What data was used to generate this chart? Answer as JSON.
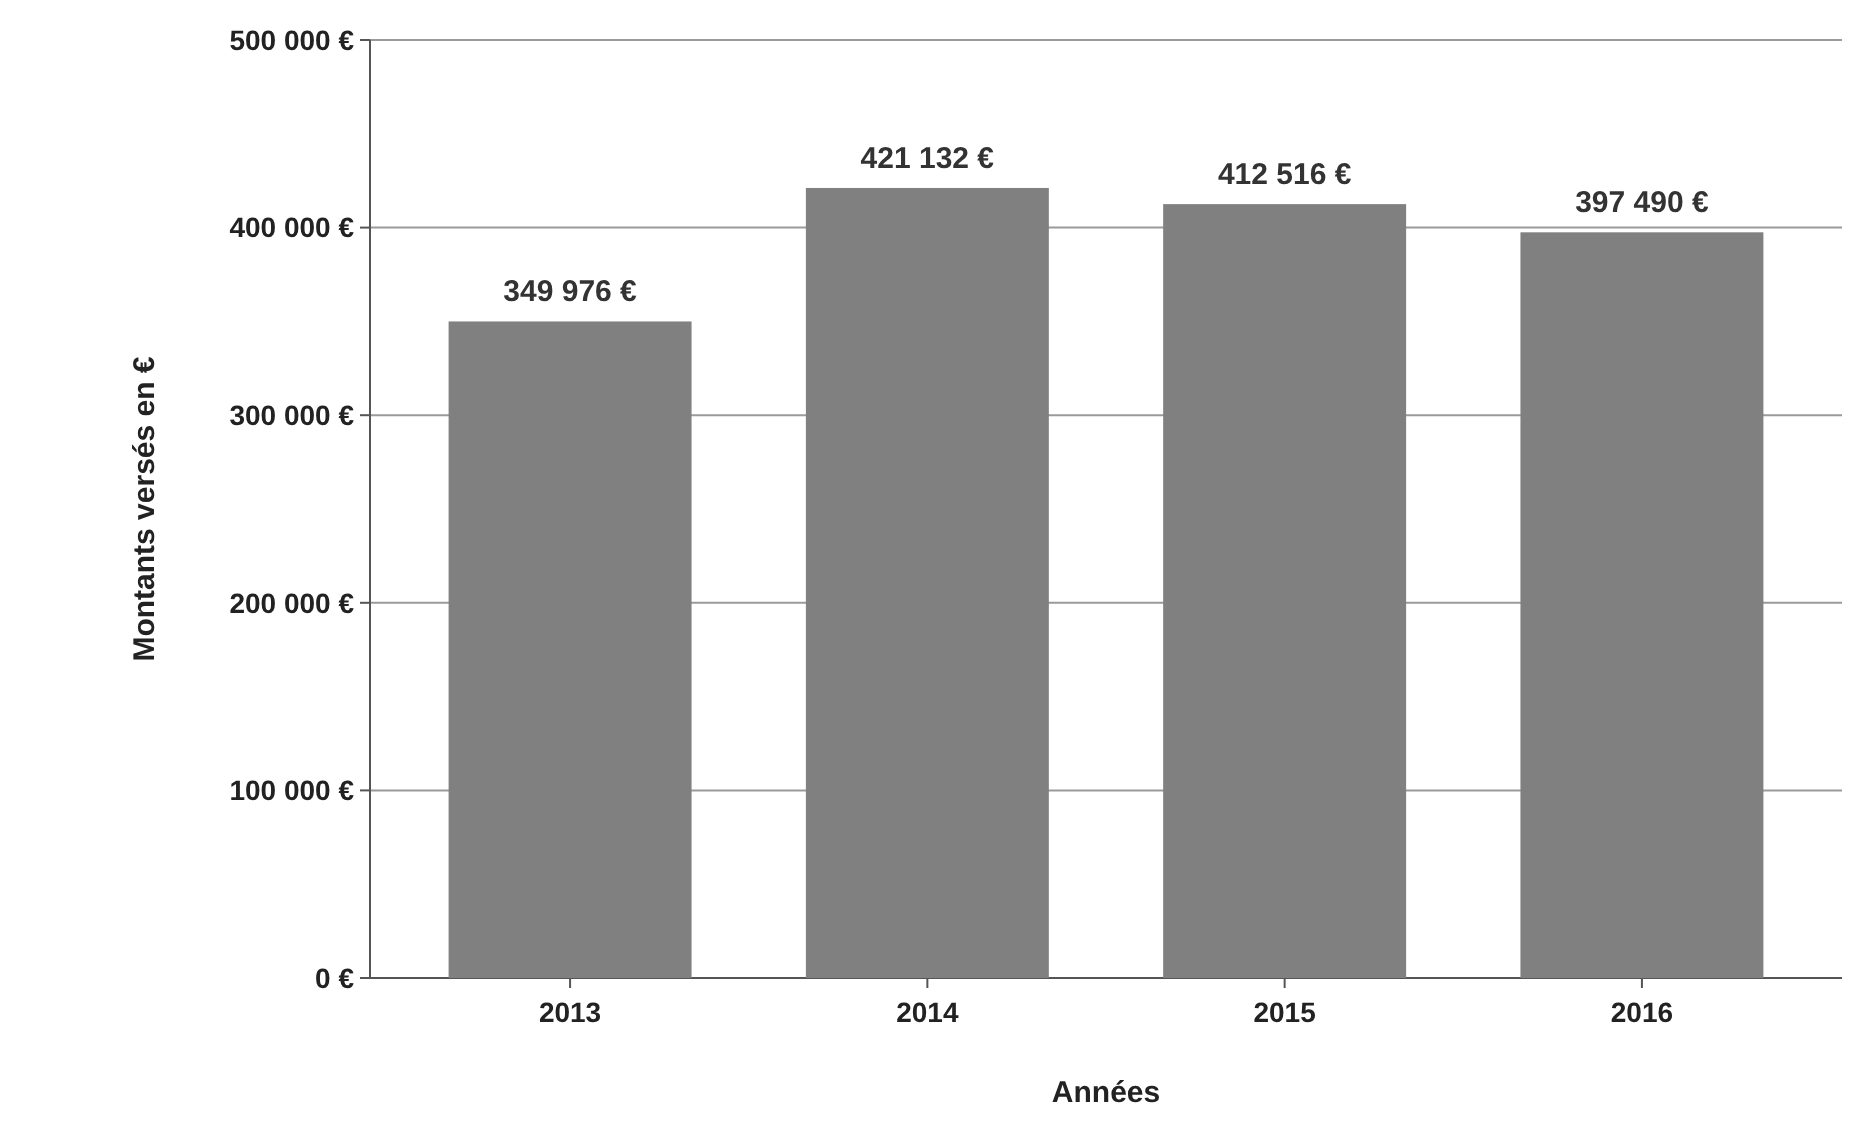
{
  "chart_data": {
    "type": "bar",
    "xlabel": "Années",
    "ylabel": "Montants versés en €",
    "categories": [
      "2013",
      "2014",
      "2015",
      "2016"
    ],
    "values": [
      349976,
      421132,
      412516,
      397490
    ],
    "value_labels": [
      "349 976 €",
      "421 132 €",
      "412 516 €",
      "397 490 €"
    ],
    "color": "#808080",
    "ylim": [
      0,
      500000
    ],
    "yticks": [
      {
        "value": 0,
        "label": "0 €"
      },
      {
        "value": 100000,
        "label": "100 000 €"
      },
      {
        "value": 200000,
        "label": "200 000 €"
      },
      {
        "value": 300000,
        "label": "300 000 €"
      },
      {
        "value": 400000,
        "label": "400 000 €"
      },
      {
        "value": 500000,
        "label": "500 000 €"
      }
    ],
    "grid": "y"
  }
}
